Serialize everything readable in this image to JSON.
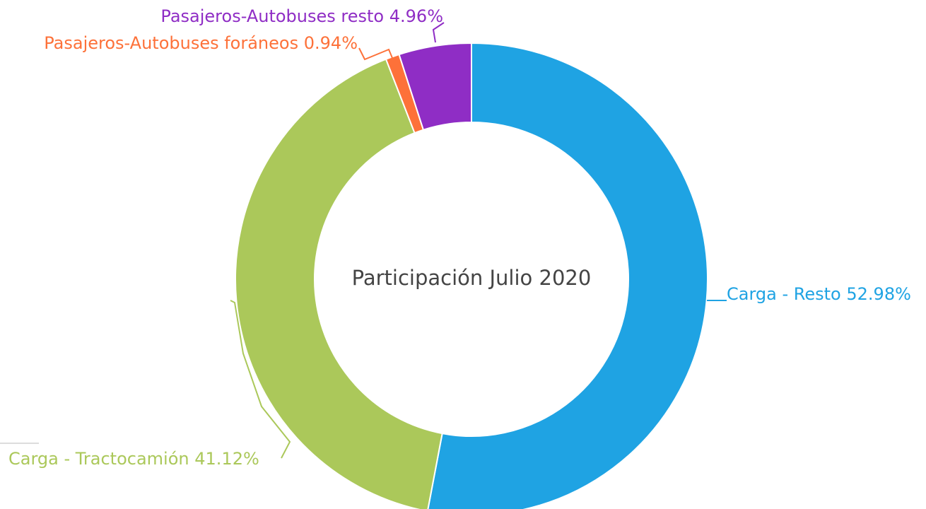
{
  "chart_data": {
    "type": "donut",
    "title": "Participación Julio 2020",
    "categories": [
      "Carga - Resto",
      "Carga - Tractocamión",
      "Pasajeros-Autobuses foráneos",
      "Pasajeros-Autobuses resto"
    ],
    "values": [
      52.98,
      41.12,
      0.94,
      4.96
    ],
    "value_labels": [
      "52.98%",
      "41.12%",
      "0.94%",
      "4.96%"
    ],
    "colors": [
      "#1fa3e3",
      "#abc85a",
      "#fd7139",
      "#8f2dc5"
    ]
  }
}
